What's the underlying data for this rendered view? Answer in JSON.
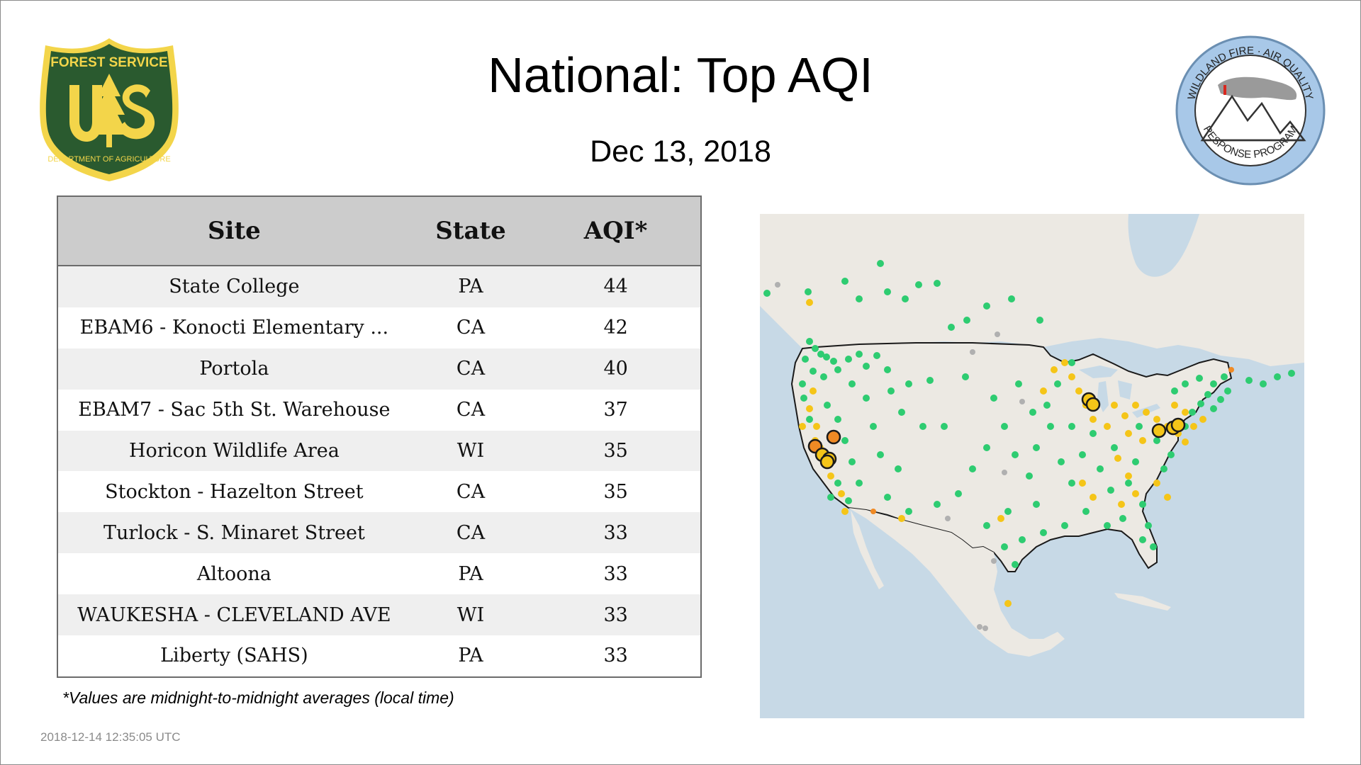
{
  "title": "National: Top AQI",
  "date": "Dec 13, 2018",
  "logo_left": {
    "icon": "forest-service-shield-icon",
    "text": "FOREST SERVICE U S DEPARTMENT OF AGRICULTURE"
  },
  "logo_right": {
    "icon": "wildland-fire-air-quality-response-program-icon",
    "text": "WILDLAND FIRE · AIR QUALITY RESPONSE PROGRAM"
  },
  "table": {
    "headers": {
      "site": "Site",
      "state": "State",
      "aqi": "AQI*"
    },
    "rows": [
      {
        "site": "State College",
        "state": "PA",
        "aqi": "44"
      },
      {
        "site": "EBAM6 - Konocti Elementary ...",
        "state": "CA",
        "aqi": "42"
      },
      {
        "site": "Portola",
        "state": "CA",
        "aqi": "40"
      },
      {
        "site": "EBAM7 - Sac 5th St. Warehouse",
        "state": "CA",
        "aqi": "37"
      },
      {
        "site": "Horicon Wildlife Area",
        "state": "WI",
        "aqi": "35"
      },
      {
        "site": "Stockton - Hazelton Street",
        "state": "CA",
        "aqi": "35"
      },
      {
        "site": "Turlock - S. Minaret Street",
        "state": "CA",
        "aqi": "33"
      },
      {
        "site": "Altoona",
        "state": "PA",
        "aqi": "33"
      },
      {
        "site": "WAUKESHA - CLEVELAND AVE",
        "state": "WI",
        "aqi": "33"
      },
      {
        "site": "Liberty (SAHS)",
        "state": "PA",
        "aqi": "33"
      }
    ]
  },
  "footnote": "*Values are midnight-to-midnight averages (local time)",
  "timestamp": "2018-12-14 12:35:05 UTC",
  "map": {
    "icon": "us-aqi-monitor-map",
    "colors": {
      "water": "#c7d9e6",
      "land": "#ece9e3",
      "good": "#2ecc71",
      "moderate": "#f5c518",
      "usg": "#f08a24",
      "nodata": "#b0b0b0"
    }
  }
}
